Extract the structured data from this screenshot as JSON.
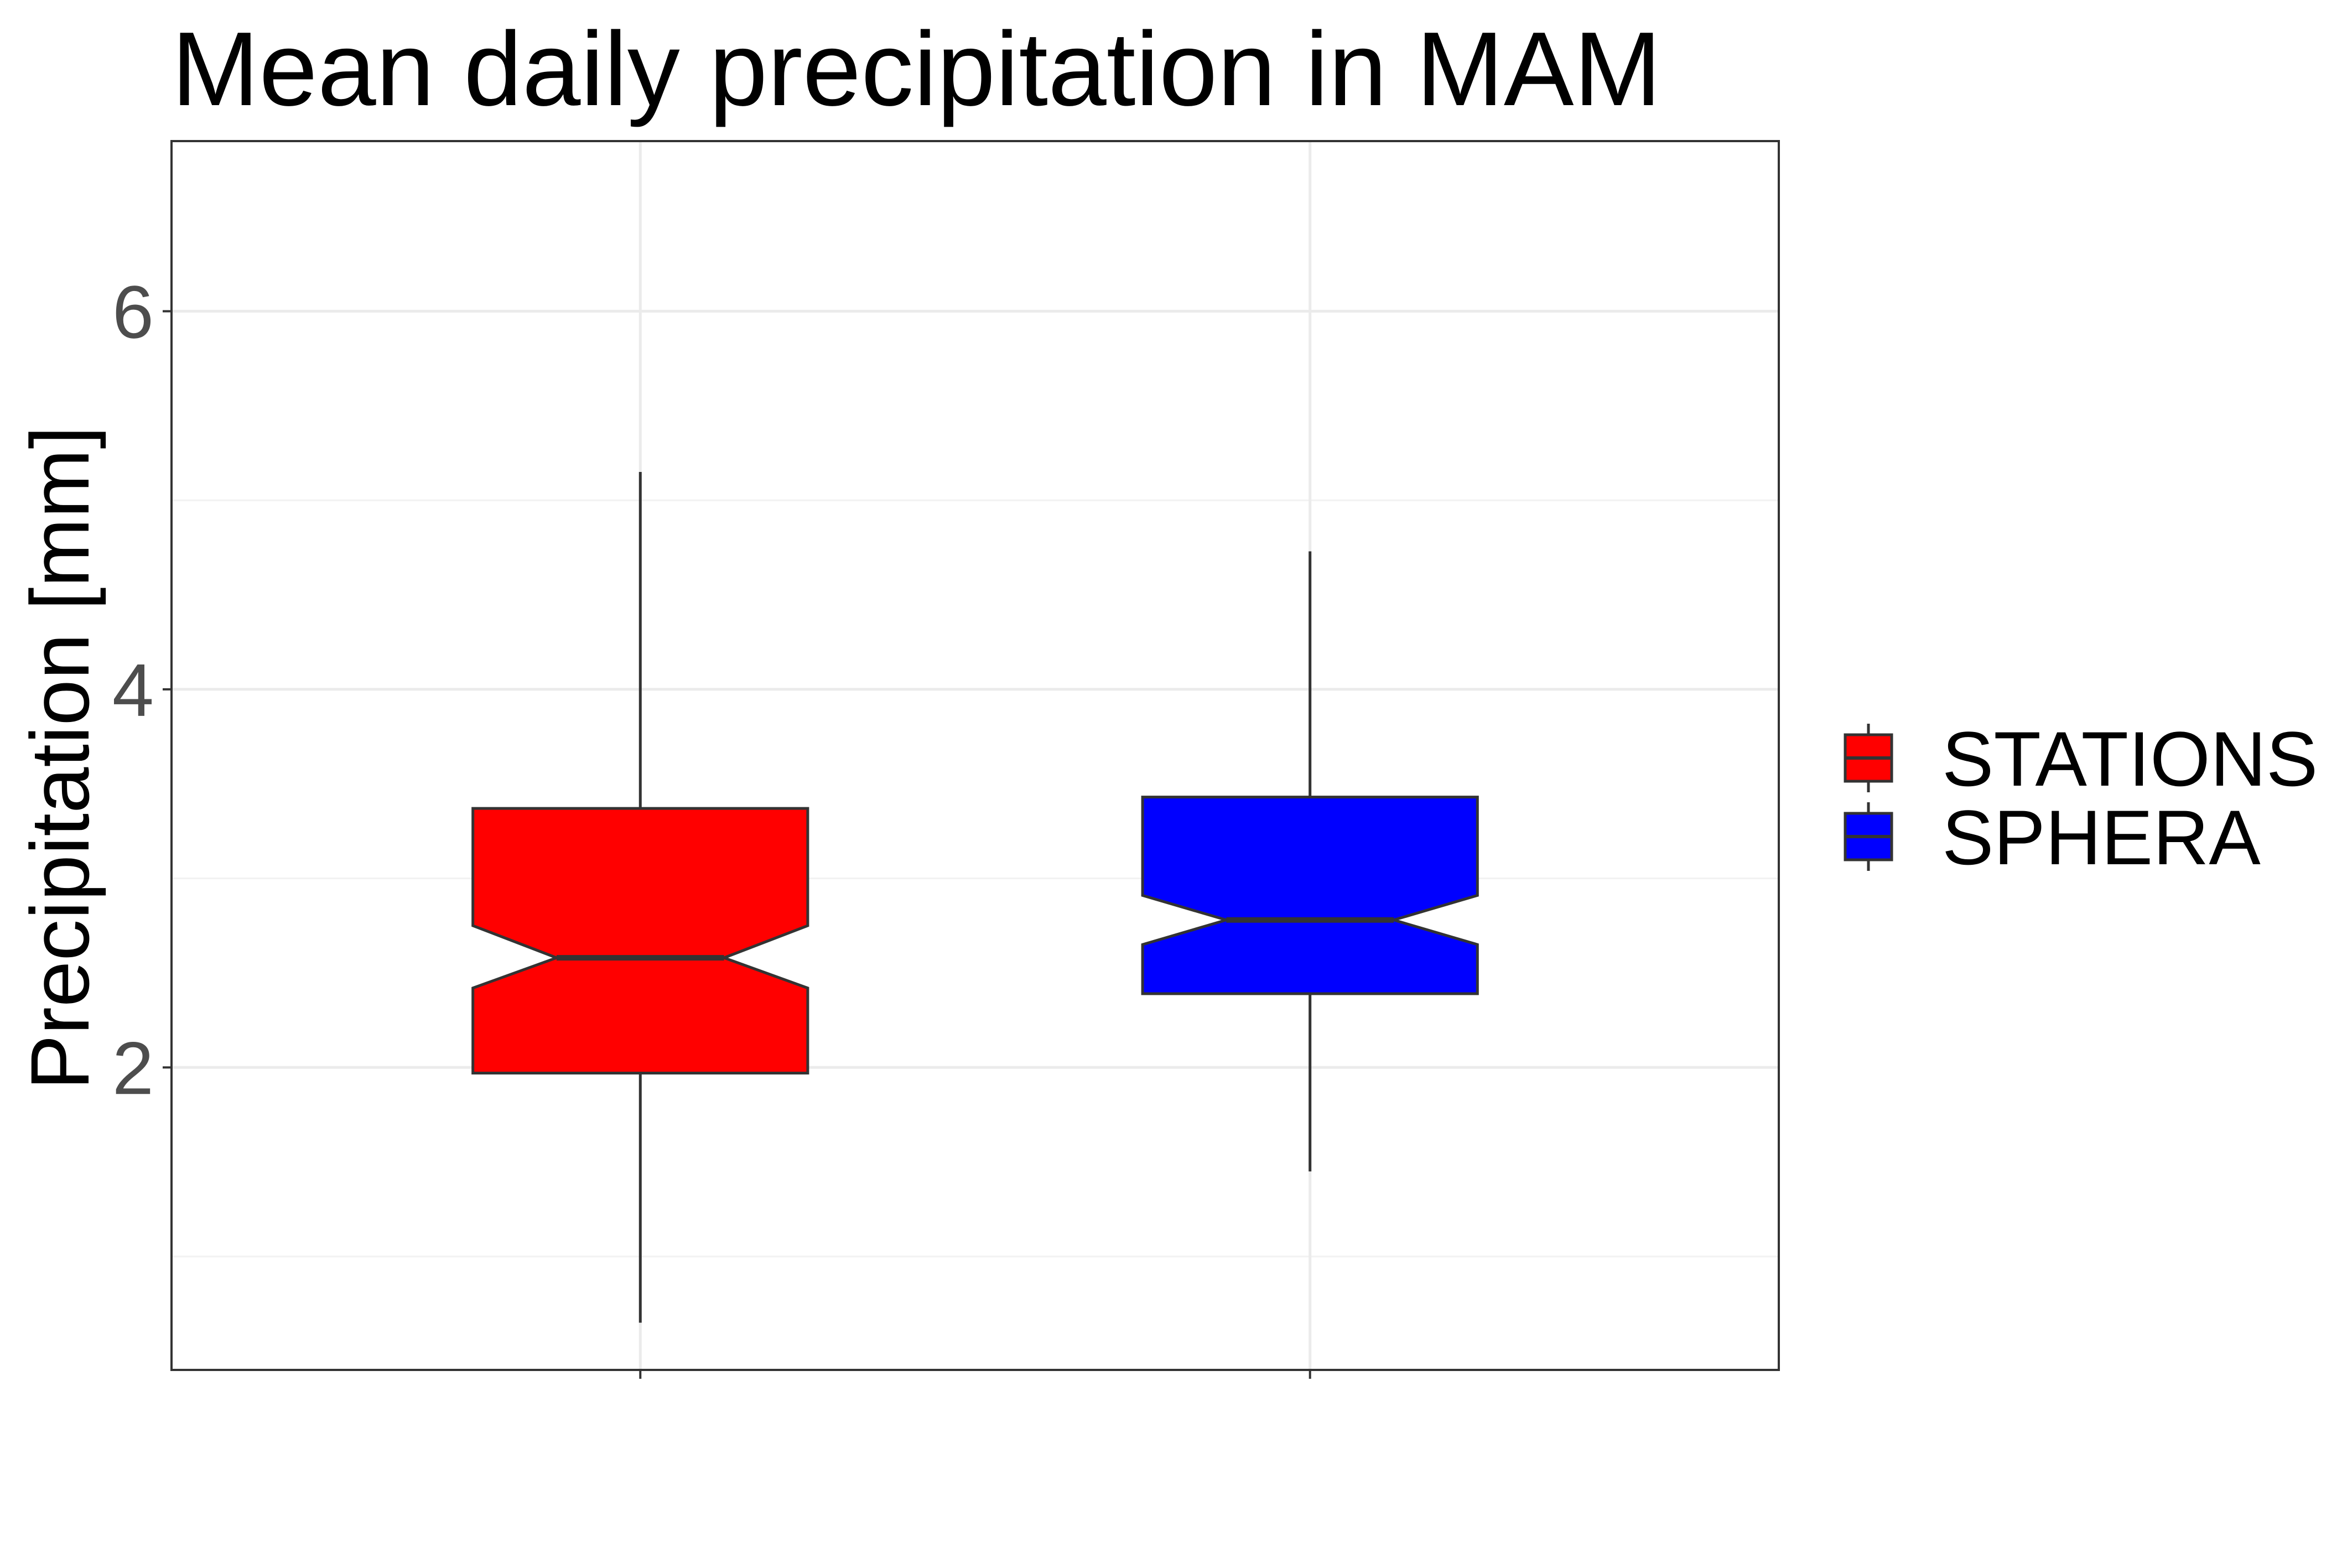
{
  "chart_data": {
    "type": "boxplot",
    "title": "Mean daily precipitation in MAM",
    "ylabel": "Precipitation [mm]",
    "xlabel": "",
    "ylim": [
      0.4,
      6.9
    ],
    "yticks": [
      2,
      4,
      6
    ],
    "ytick_labels": [
      "2",
      "4",
      "6"
    ],
    "grid": true,
    "notched": true,
    "legend_position": "right",
    "series": [
      {
        "name": "STATIONS",
        "color": "#ff0000",
        "whisker_low": 0.65,
        "q1": 1.97,
        "notch_low": 2.42,
        "median": 2.58,
        "notch_high": 2.75,
        "q3": 3.37,
        "whisker_high": 5.15
      },
      {
        "name": "SPHERA",
        "color": "#0000ff",
        "whisker_low": 1.45,
        "q1": 2.39,
        "notch_low": 2.65,
        "median": 2.78,
        "notch_high": 2.91,
        "q3": 3.43,
        "whisker_high": 4.73
      }
    ]
  }
}
